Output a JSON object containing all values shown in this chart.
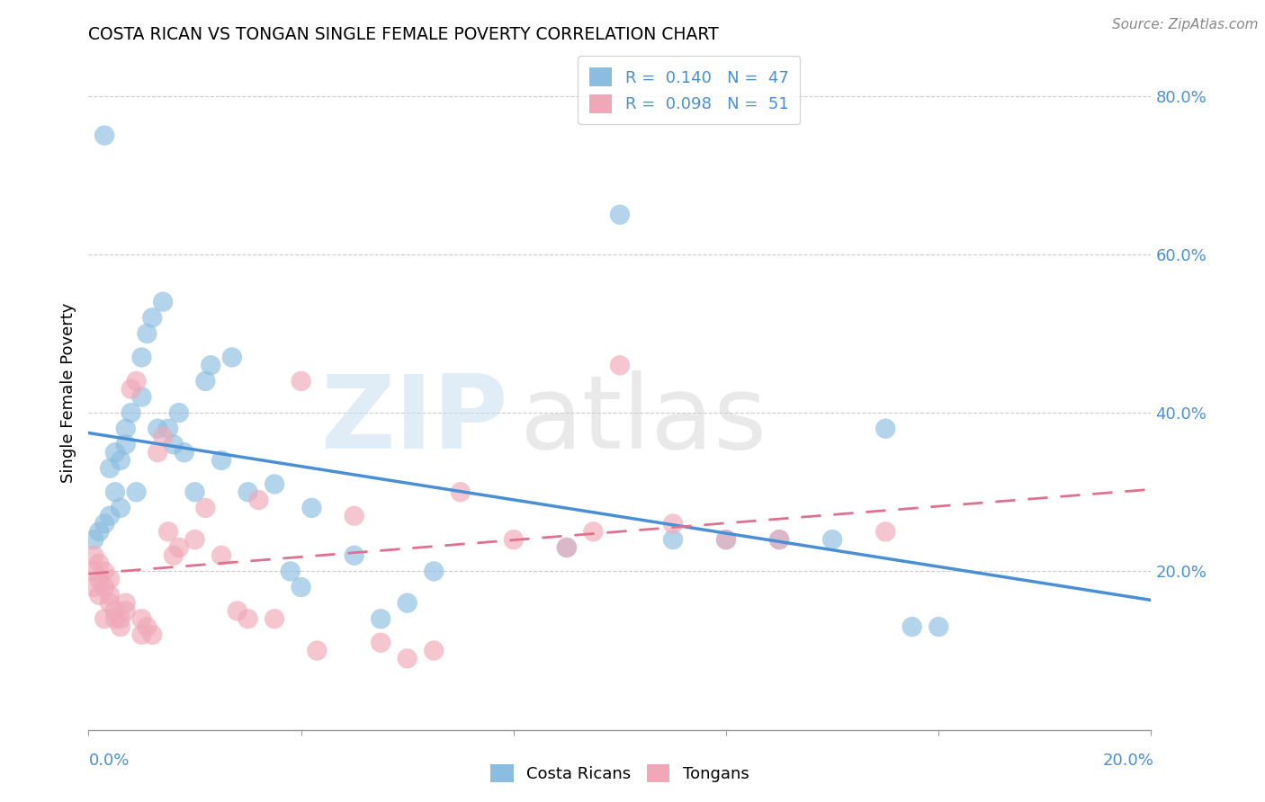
{
  "title": "COSTA RICAN VS TONGAN SINGLE FEMALE POVERTY CORRELATION CHART",
  "source": "Source: ZipAtlas.com",
  "ylabel": "Single Female Poverty",
  "watermark_zip": "ZIP",
  "watermark_atlas": "atlas",
  "blue_color": "#8bbde0",
  "pink_color": "#f0a8b8",
  "blue_line_color": "#4a8fd4",
  "pink_line_color": "#e07090",
  "r_blue_text": "R =  0.140   N =  47",
  "r_pink_text": "R =  0.098   N =  51",
  "xmin": 0.0,
  "xmax": 0.2,
  "ymin": 0.0,
  "ymax": 0.85,
  "yticks": [
    0.2,
    0.4,
    0.6,
    0.8
  ],
  "ytick_labels": [
    "20.0%",
    "40.0%",
    "60.0%",
    "80.0%"
  ],
  "blue_x": [
    0.001,
    0.002,
    0.003,
    0.003,
    0.004,
    0.004,
    0.005,
    0.005,
    0.006,
    0.006,
    0.007,
    0.007,
    0.008,
    0.009,
    0.01,
    0.01,
    0.011,
    0.012,
    0.013,
    0.014,
    0.015,
    0.016,
    0.017,
    0.018,
    0.02,
    0.022,
    0.023,
    0.025,
    0.027,
    0.03,
    0.035,
    0.038,
    0.04,
    0.042,
    0.05,
    0.055,
    0.06,
    0.065,
    0.09,
    0.1,
    0.11,
    0.12,
    0.13,
    0.14,
    0.15,
    0.155,
    0.16
  ],
  "blue_y": [
    0.24,
    0.25,
    0.26,
    0.75,
    0.27,
    0.33,
    0.3,
    0.35,
    0.28,
    0.34,
    0.36,
    0.38,
    0.4,
    0.3,
    0.42,
    0.47,
    0.5,
    0.52,
    0.38,
    0.54,
    0.38,
    0.36,
    0.4,
    0.35,
    0.3,
    0.44,
    0.46,
    0.34,
    0.47,
    0.3,
    0.31,
    0.2,
    0.18,
    0.28,
    0.22,
    0.14,
    0.16,
    0.2,
    0.23,
    0.65,
    0.24,
    0.24,
    0.24,
    0.24,
    0.38,
    0.13,
    0.13
  ],
  "pink_x": [
    0.001,
    0.001,
    0.001,
    0.002,
    0.002,
    0.002,
    0.003,
    0.003,
    0.003,
    0.004,
    0.004,
    0.004,
    0.005,
    0.005,
    0.006,
    0.006,
    0.007,
    0.007,
    0.008,
    0.009,
    0.01,
    0.01,
    0.011,
    0.012,
    0.013,
    0.014,
    0.015,
    0.016,
    0.017,
    0.02,
    0.022,
    0.025,
    0.028,
    0.03,
    0.032,
    0.035,
    0.04,
    0.043,
    0.05,
    0.055,
    0.06,
    0.065,
    0.07,
    0.08,
    0.09,
    0.095,
    0.1,
    0.11,
    0.12,
    0.13,
    0.15
  ],
  "pink_y": [
    0.22,
    0.2,
    0.18,
    0.19,
    0.21,
    0.17,
    0.18,
    0.2,
    0.14,
    0.16,
    0.17,
    0.19,
    0.14,
    0.15,
    0.13,
    0.14,
    0.15,
    0.16,
    0.43,
    0.44,
    0.12,
    0.14,
    0.13,
    0.12,
    0.35,
    0.37,
    0.25,
    0.22,
    0.23,
    0.24,
    0.28,
    0.22,
    0.15,
    0.14,
    0.29,
    0.14,
    0.44,
    0.1,
    0.27,
    0.11,
    0.09,
    0.1,
    0.3,
    0.24,
    0.23,
    0.25,
    0.46,
    0.26,
    0.24,
    0.24,
    0.25
  ]
}
